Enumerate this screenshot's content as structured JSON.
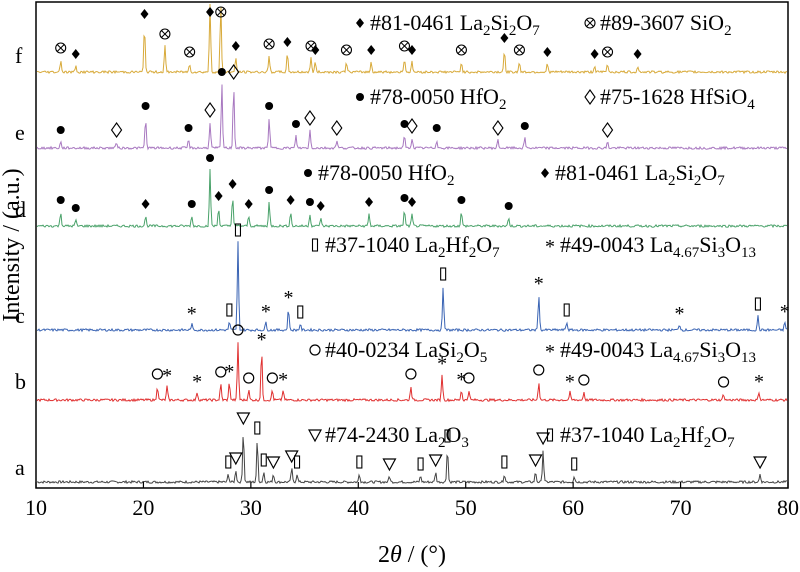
{
  "chart_data": {
    "type": "line",
    "xlabel_parts": [
      "2",
      "θ",
      " / (°)"
    ],
    "ylabel": "Intensity / (a.u.)",
    "xlim": [
      10,
      80
    ],
    "xticks": [
      10,
      20,
      30,
      40,
      50,
      60,
      70,
      80
    ],
    "series": [
      {
        "name": "a",
        "color": "#444444",
        "legend": [
          {
            "symbol": "triangle",
            "code": "#74-2430",
            "formula": [
              [
                "La",
                ""
              ],
              [
                "2",
                "sub"
              ],
              [
                "O",
                ""
              ],
              [
                "3",
                "sub"
              ]
            ]
          },
          {
            "symbol": "rect",
            "code": "#37-1040",
            "formula": [
              [
                "La",
                ""
              ],
              [
                "2",
                "sub"
              ],
              [
                "Hf",
                ""
              ],
              [
                "2",
                "sub"
              ],
              [
                "O",
                ""
              ],
              [
                "7",
                "sub"
              ]
            ]
          }
        ],
        "peaks": [
          [
            29.3,
            52
          ],
          [
            30.6,
            42
          ],
          [
            28.6,
            12
          ],
          [
            31.2,
            10
          ],
          [
            33.8,
            14
          ],
          [
            48.3,
            34
          ],
          [
            57.2,
            32
          ],
          [
            40.1,
            8
          ],
          [
            47.2,
            10
          ],
          [
            53.6,
            8
          ],
          [
            56.5,
            10
          ],
          [
            27.9,
            8
          ],
          [
            32.1,
            8
          ],
          [
            34.3,
            8
          ],
          [
            42.9,
            6
          ],
          [
            45.8,
            6
          ],
          [
            77.4,
            8
          ],
          [
            60.1,
            6
          ]
        ]
      },
      {
        "name": "b",
        "color": "#e03030",
        "legend": [
          {
            "symbol": "circle",
            "code": "#40-0234",
            "formula": [
              [
                "LaSi",
                ""
              ],
              [
                "2",
                "sub"
              ],
              [
                "O",
                ""
              ],
              [
                "5",
                "sub"
              ]
            ]
          },
          {
            "symbol": "star",
            "code": "#49-0043",
            "formula": [
              [
                "La",
                ""
              ],
              [
                "4.67",
                "sub"
              ],
              [
                "Si",
                ""
              ],
              [
                "3",
                "sub"
              ],
              [
                "O",
                ""
              ],
              [
                "13",
                "sub"
              ]
            ]
          }
        ],
        "peaks": [
          [
            28.8,
            58
          ],
          [
            31.0,
            50
          ],
          [
            27.2,
            16
          ],
          [
            28.0,
            18
          ],
          [
            21.3,
            14
          ],
          [
            22.2,
            14
          ],
          [
            32.0,
            10
          ],
          [
            33.0,
            10
          ],
          [
            44.9,
            14
          ],
          [
            47.8,
            26
          ],
          [
            56.8,
            18
          ],
          [
            59.7,
            8
          ],
          [
            61.0,
            8
          ],
          [
            25.0,
            8
          ],
          [
            29.8,
            10
          ],
          [
            49.6,
            10
          ],
          [
            50.3,
            10
          ],
          [
            77.3,
            8
          ],
          [
            74.0,
            6
          ]
        ]
      },
      {
        "name": "c",
        "color": "#3a64b4",
        "legend": [
          {
            "symbol": "rect",
            "code": "#37-1040",
            "formula": [
              [
                "La",
                ""
              ],
              [
                "2",
                "sub"
              ],
              [
                "Hf",
                ""
              ],
              [
                "2",
                "sub"
              ],
              [
                "O",
                ""
              ],
              [
                "7",
                "sub"
              ]
            ]
          },
          {
            "symbol": "star",
            "code": "#49-0043",
            "formula": [
              [
                "La",
                ""
              ],
              [
                "4.67",
                "sub"
              ],
              [
                "Si",
                ""
              ],
              [
                "3",
                "sub"
              ],
              [
                "O",
                ""
              ],
              [
                "13",
                "sub"
              ]
            ]
          }
        ],
        "peaks": [
          [
            28.8,
            88
          ],
          [
            33.5,
            22
          ],
          [
            47.9,
            44
          ],
          [
            56.8,
            36
          ],
          [
            59.4,
            8
          ],
          [
            69.9,
            6
          ],
          [
            77.2,
            14
          ],
          [
            79.7,
            8
          ],
          [
            28.0,
            8
          ],
          [
            31.4,
            8
          ],
          [
            34.6,
            6
          ],
          [
            24.5,
            6
          ]
        ]
      },
      {
        "name": "d",
        "color": "#4aa26a",
        "legend": [
          {
            "symbol": "dot",
            "code": "#78-0050",
            "formula": [
              [
                "HfO",
                ""
              ],
              [
                "2",
                "sub"
              ]
            ]
          },
          {
            "symbol": "diamond",
            "code": "#81-0461",
            "formula": [
              [
                "La",
                ""
              ],
              [
                "2",
                "sub"
              ],
              [
                "Si",
                ""
              ],
              [
                "2",
                "sub"
              ],
              [
                "O",
                ""
              ],
              [
                "7",
                "sub"
              ]
            ]
          }
        ],
        "peaks": [
          [
            26.2,
            56
          ],
          [
            28.3,
            30
          ],
          [
            31.7,
            24
          ],
          [
            27.0,
            18
          ],
          [
            12.3,
            14
          ],
          [
            20.2,
            10
          ],
          [
            24.5,
            10
          ],
          [
            33.7,
            14
          ],
          [
            35.5,
            12
          ],
          [
            41.0,
            12
          ],
          [
            44.3,
            16
          ],
          [
            45.0,
            12
          ],
          [
            49.6,
            14
          ],
          [
            29.8,
            10
          ],
          [
            13.7,
            6
          ],
          [
            36.5,
            8
          ],
          [
            54.0,
            8
          ]
        ]
      },
      {
        "name": "e",
        "color": "#a878c0",
        "legend": [
          {
            "symbol": "dot",
            "code": "#78-0050",
            "formula": [
              [
                "HfO",
                ""
              ],
              [
                "2",
                "sub"
              ]
            ]
          },
          {
            "symbol": "diamond-open",
            "code": "#75-1628",
            "formula": [
              [
                "HfSiO",
                ""
              ],
              [
                "4",
                "sub"
              ]
            ]
          }
        ],
        "peaks": [
          [
            27.3,
            64
          ],
          [
            28.4,
            64
          ],
          [
            20.2,
            30
          ],
          [
            26.2,
            26
          ],
          [
            31.7,
            30
          ],
          [
            35.5,
            18
          ],
          [
            34.2,
            12
          ],
          [
            38.0,
            8
          ],
          [
            44.3,
            12
          ],
          [
            45.0,
            10
          ],
          [
            47.3,
            8
          ],
          [
            53.0,
            8
          ],
          [
            55.5,
            10
          ],
          [
            63.2,
            6
          ],
          [
            12.3,
            6
          ],
          [
            17.5,
            6
          ],
          [
            24.2,
            8
          ]
        ]
      },
      {
        "name": "f",
        "color": "#d8aa3a",
        "legend": [
          {
            "symbol": "diamond",
            "code": "#81-0461",
            "formula": [
              [
                "La",
                ""
              ],
              [
                "2",
                "sub"
              ],
              [
                "Si",
                ""
              ],
              [
                "2",
                "sub"
              ],
              [
                "O",
                ""
              ],
              [
                "7",
                "sub"
              ]
            ]
          },
          {
            "symbol": "circle-x",
            "code": "#89-3607",
            "formula": [
              [
                "SiO",
                ""
              ],
              [
                "2",
                "sub"
              ]
            ]
          }
        ],
        "peaks": [
          [
            26.2,
            70
          ],
          [
            27.2,
            68
          ],
          [
            20.1,
            46
          ],
          [
            22.0,
            26
          ],
          [
            28.6,
            14
          ],
          [
            31.7,
            16
          ],
          [
            33.4,
            18
          ],
          [
            35.6,
            14
          ],
          [
            36.0,
            10
          ],
          [
            38.9,
            10
          ],
          [
            41.2,
            10
          ],
          [
            44.3,
            14
          ],
          [
            45.0,
            10
          ],
          [
            49.6,
            10
          ],
          [
            53.6,
            22
          ],
          [
            55.0,
            10
          ],
          [
            57.6,
            8
          ],
          [
            12.3,
            12
          ],
          [
            13.7,
            6
          ],
          [
            24.3,
            8
          ],
          [
            62.0,
            6
          ],
          [
            63.2,
            8
          ],
          [
            66.0,
            6
          ]
        ]
      }
    ]
  }
}
